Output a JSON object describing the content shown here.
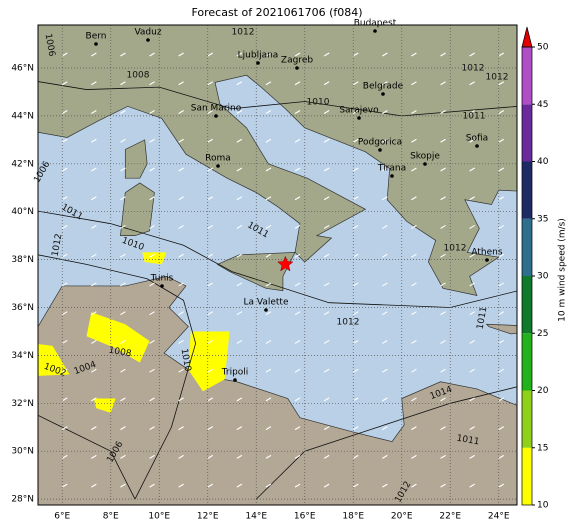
{
  "title": "Forecast of 2021061706 (f084)",
  "xticks": [
    {
      "value": 6,
      "label": "6°E"
    },
    {
      "value": 8,
      "label": "8°E"
    },
    {
      "value": 10,
      "label": "10°E"
    },
    {
      "value": 12,
      "label": "12°E"
    },
    {
      "value": 14,
      "label": "14°E"
    },
    {
      "value": 16,
      "label": "16°E"
    },
    {
      "value": 18,
      "label": "18°E"
    },
    {
      "value": 20,
      "label": "20°E"
    },
    {
      "value": 22,
      "label": "22°E"
    },
    {
      "value": 24,
      "label": "24°E"
    }
  ],
  "yticks": [
    {
      "value": 46,
      "label": "46°N"
    },
    {
      "value": 44,
      "label": "44°N"
    },
    {
      "value": 42,
      "label": "42°N"
    },
    {
      "value": 40,
      "label": "40°N"
    },
    {
      "value": 38,
      "label": "38°N"
    },
    {
      "value": 36,
      "label": "36°N"
    },
    {
      "value": 34,
      "label": "34°N"
    },
    {
      "value": 32,
      "label": "32°N"
    },
    {
      "value": 30,
      "label": "30°N"
    },
    {
      "value": 28,
      "label": "28°N"
    }
  ],
  "cities": [
    "Bern",
    "Vaduz",
    "Ljubljana",
    "Zagreb",
    "Budapest",
    "San Marino",
    "Belgrade",
    "Sarajevo",
    "Roma",
    "Podgorica",
    "Skopje",
    "Tirana",
    "Sofia",
    "Tunis",
    "La Valette",
    "Athens",
    "Tripoli"
  ],
  "isobar_labels": [
    "1006",
    "1008",
    "1010",
    "1011",
    "1012",
    "1010",
    "1011",
    "1012",
    "1014",
    "1011",
    "1012",
    "1006",
    "1002",
    "1004",
    "1008",
    "1010",
    "1012",
    "1012",
    "1011",
    "1012",
    "1011",
    "1006",
    "1012"
  ],
  "colorbar": {
    "label": "10 m wind speed (m/s)",
    "lim": [
      10,
      50
    ],
    "ticks": [
      10,
      15,
      20,
      25,
      30,
      35,
      40,
      45,
      50
    ],
    "colors": [
      "#ffff00",
      "#8fd11a",
      "#22b21c",
      "#0e7a2a",
      "#2e6f8e",
      "#1d2a63",
      "#6a2a9c",
      "#b04ec8"
    ],
    "extend_color": "#e00000"
  }
}
